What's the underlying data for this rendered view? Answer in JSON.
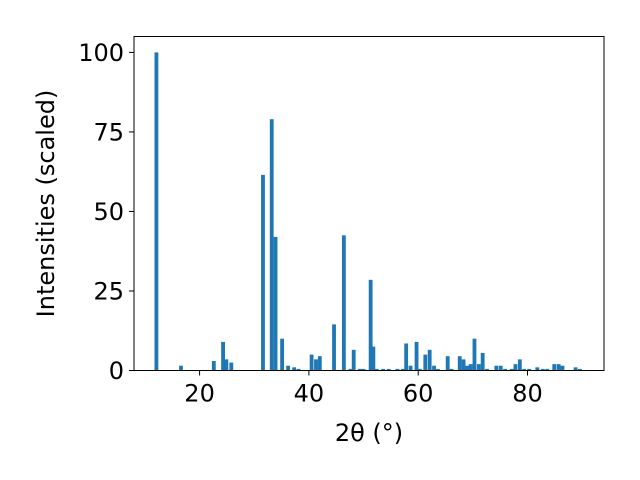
{
  "chart_data": {
    "type": "bar",
    "xlabel": "2θ (°)",
    "ylabel": "Intensities (scaled)",
    "xlim": [
      8.0,
      94.0
    ],
    "ylim": [
      0,
      105
    ],
    "xticks": [
      20,
      40,
      60,
      80
    ],
    "yticks": [
      0,
      25,
      50,
      75,
      100
    ],
    "bar_color": "#1f77b4",
    "bar_width": 0.7,
    "grid": false,
    "legend": "none",
    "x": [
      12.1,
      16.6,
      22.6,
      24.3,
      24.9,
      25.8,
      31.6,
      33.2,
      33.9,
      35.1,
      36.2,
      37.3,
      38.1,
      40.5,
      41.3,
      42.0,
      44.6,
      46.4,
      47.6,
      48.2,
      49.3,
      50.0,
      51.3,
      51.8,
      52.4,
      53.6,
      54.6,
      56.2,
      57.2,
      57.8,
      58.6,
      59.7,
      60.3,
      61.3,
      62.1,
      62.9,
      63.6,
      65.4,
      66.1,
      67.6,
      68.3,
      69.0,
      69.6,
      70.3,
      71.1,
      71.8,
      72.6,
      74.3,
      75.1,
      75.9,
      77.1,
      77.8,
      78.6,
      79.4,
      80.3,
      81.8,
      82.8,
      83.6,
      84.9,
      85.7,
      86.4,
      88.8,
      89.6
    ],
    "values": [
      100,
      1.5,
      3,
      9,
      3.5,
      2.5,
      61.5,
      79,
      42,
      10,
      1.5,
      1,
      0.5,
      5,
      3.5,
      4.5,
      14.5,
      42.5,
      0.5,
      6.5,
      0.5,
      0.5,
      28.5,
      7.5,
      0.5,
      0.5,
      0.5,
      0.5,
      0.5,
      8.5,
      1.5,
      9,
      0.5,
      5,
      6.5,
      1.5,
      0.5,
      4.5,
      0.5,
      4.5,
      3.5,
      1.5,
      2,
      10,
      2,
      5.5,
      0.5,
      1.5,
      1.5,
      0.5,
      0.5,
      2,
      3.5,
      0.5,
      0.5,
      1,
      0.5,
      0.5,
      2,
      2,
      1.5,
      1,
      0.5
    ]
  }
}
